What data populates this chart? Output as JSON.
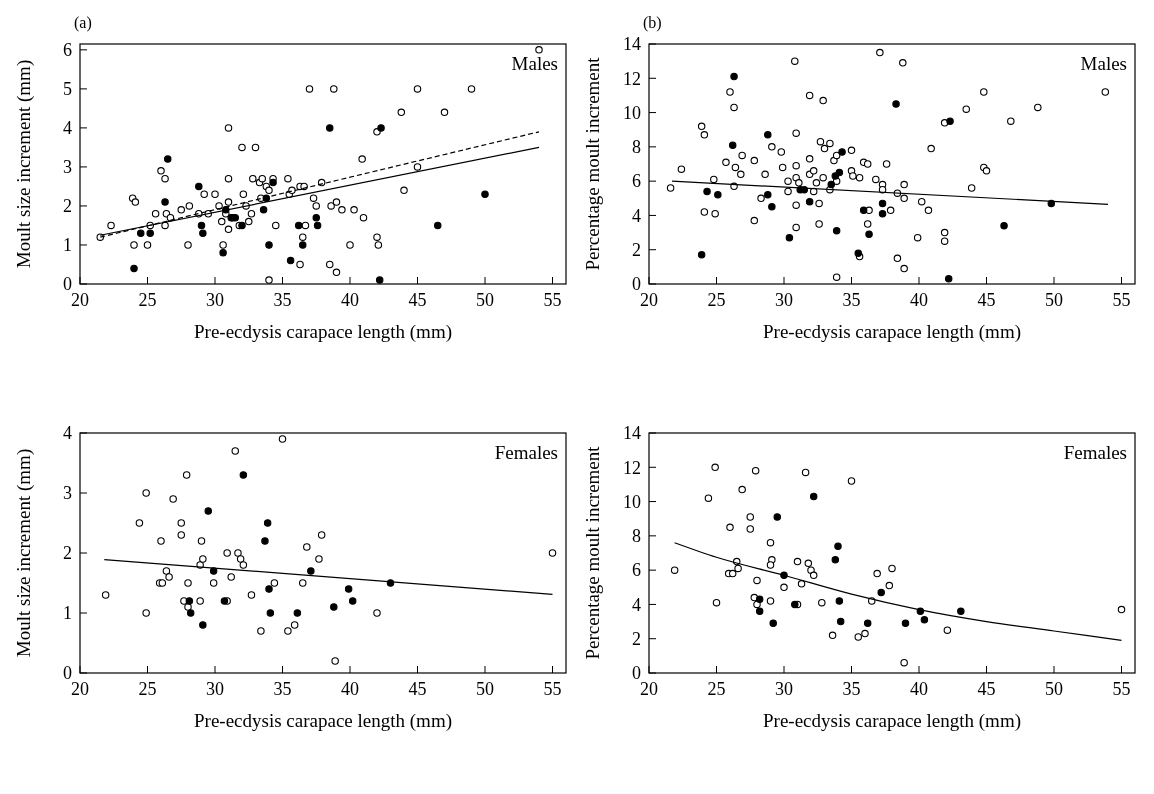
{
  "chart_data": [
    {
      "type": "scatter",
      "title": "Males",
      "annotations": [
        "(a)"
      ],
      "xlabel": "Pre-ecdysis carapace length (mm)",
      "ylabel": "Moult size increment (mm)",
      "xlim": [
        20,
        56
      ],
      "ylim": [
        0,
        6.15
      ],
      "xticks": [
        20,
        25,
        30,
        35,
        40,
        45,
        50,
        55
      ],
      "yticks": [
        0,
        1,
        2,
        3,
        4,
        5,
        6
      ],
      "series": [
        {
          "marker": "circle",
          "color": "#ffffff",
          "x": [
            21.5,
            22.3,
            23.9,
            24.1,
            24,
            25,
            25.2,
            25.6,
            26,
            26.3,
            26.3,
            26.4,
            26.7,
            27.5,
            28,
            28.1,
            28.8,
            29.2,
            29.5,
            30,
            30.3,
            30.5,
            30.6,
            30.8,
            31,
            31,
            31,
            31,
            31.3,
            31.8,
            32,
            32.1,
            32.3,
            32.5,
            32.7,
            32.8,
            33,
            33.3,
            33.4,
            33.5,
            33.8,
            34,
            34,
            34.3,
            34.5,
            35.4,
            35.5,
            35.7,
            36.3,
            36.5,
            36.6,
            36.7,
            37,
            37.3,
            37.5,
            37.9,
            38.8,
            38.5,
            38.6,
            39,
            39.4,
            40,
            40.3,
            40.9,
            41,
            42,
            42,
            42.1,
            43.8,
            44,
            45,
            45,
            47,
            49,
            54,
            39,
            36.3
          ],
          "values": [
            1.2,
            1.5,
            2.2,
            2.1,
            1,
            1,
            1.5,
            1.8,
            2.9,
            2.7,
            1.5,
            1.8,
            1.7,
            1.9,
            1,
            2,
            1.8,
            2.3,
            1.8,
            2.3,
            2,
            1.6,
            1,
            1.8,
            4,
            2.7,
            2.1,
            1.4,
            1.7,
            1.5,
            3.5,
            2.3,
            2,
            1.6,
            1.8,
            2.7,
            3.5,
            2.6,
            2.2,
            2.7,
            2.5,
            2.4,
            0.1,
            2.7,
            1.5,
            2.7,
            2.3,
            2.4,
            2.5,
            1.2,
            2.5,
            1.5,
            5,
            2.2,
            2,
            2.6,
            5,
            0.5,
            2,
            2.1,
            1.9,
            1,
            1.9,
            3.2,
            1.7,
            3.9,
            1.2,
            1,
            4.4,
            2.4,
            5,
            3,
            4.4,
            5,
            6,
            0.3,
            0.5
          ]
        },
        {
          "marker": "circle",
          "color": "#000000",
          "x": [
            24,
            24.5,
            25.2,
            26.3,
            26.5,
            28.8,
            29,
            29.1,
            30.6,
            30.8,
            31.2,
            31.5,
            32,
            33.6,
            33.8,
            34,
            34.3,
            35.6,
            36.2,
            36.5,
            37.5,
            37.6,
            38.5,
            42.3,
            42.2,
            46.5,
            50
          ],
          "values": [
            0.4,
            1.3,
            1.3,
            2.1,
            3.2,
            2.5,
            1.5,
            1.3,
            0.8,
            1.9,
            1.7,
            1.7,
            1.5,
            1.9,
            2.2,
            1,
            2.6,
            0.6,
            1.5,
            1,
            1.7,
            1.5,
            4,
            4,
            0.1,
            1.5,
            2.3
          ]
        },
        {
          "type": "line",
          "line_style": "solid",
          "color": "#000000",
          "x": [
            21.5,
            54
          ],
          "values": [
            1.25,
            3.5
          ]
        },
        {
          "type": "line",
          "line_style": "dashed",
          "color": "#000000",
          "x": [
            21.5,
            54
          ],
          "values": [
            1.2,
            3.9
          ]
        }
      ]
    },
    {
      "type": "scatter",
      "title": "Males",
      "annotations": [
        "(b)"
      ],
      "xlabel": "Pre-ecdysis carapace length (mm)",
      "ylabel": "Percentage moult increment",
      "xlim": [
        20,
        56
      ],
      "ylim": [
        0,
        14
      ],
      "xticks": [
        20,
        25,
        30,
        35,
        40,
        45,
        50,
        55
      ],
      "yticks": [
        0,
        2,
        4,
        6,
        8,
        10,
        12,
        14
      ],
      "series": [
        {
          "marker": "circle",
          "color": "#ffffff",
          "x": [
            21.6,
            22.4,
            23.9,
            24.1,
            24.1,
            24.8,
            24.9,
            25.7,
            26,
            26.3,
            26.3,
            26.4,
            26.8,
            26.9,
            27.8,
            27.8,
            28.3,
            28.6,
            29.1,
            29.8,
            29.9,
            30.3,
            30.3,
            30.8,
            30.9,
            30.9,
            30.9,
            30.9,
            30.9,
            31.1,
            31.9,
            31.9,
            31.9,
            32.2,
            32.2,
            32.4,
            32.6,
            32.6,
            32.7,
            32.9,
            32.9,
            33,
            33.4,
            33.4,
            33.7,
            33.9,
            33.9,
            35,
            35,
            35.1,
            35.6,
            35.6,
            35.9,
            36.2,
            36.2,
            36.3,
            36.8,
            37.1,
            37.3,
            37.3,
            37.6,
            37.9,
            38.4,
            38.4,
            38.8,
            38.9,
            38.9,
            39.9,
            40.2,
            40.7,
            40.9,
            41.9,
            41.9,
            41.9,
            43.5,
            43.9,
            44.8,
            44.8,
            45,
            46.8,
            48.8,
            53.8,
            33.9,
            38.9
          ],
          "values": [
            5.6,
            6.7,
            9.2,
            8.7,
            4.2,
            6.1,
            4.1,
            7.1,
            11.2,
            10.3,
            5.7,
            6.8,
            6.4,
            7.5,
            7.2,
            3.7,
            5,
            6.4,
            8,
            7.7,
            6.8,
            6,
            5.4,
            13,
            8.8,
            6.9,
            6.2,
            4.6,
            3.3,
            5.9,
            11,
            7.3,
            6.4,
            6.6,
            5.4,
            5.9,
            4.7,
            3.5,
            8.3,
            10.7,
            6.2,
            7.9,
            5.5,
            8.2,
            7.2,
            7.5,
            6,
            7.8,
            6.6,
            6.3,
            6.2,
            1.6,
            7.1,
            7,
            3.5,
            4.3,
            6.1,
            13.5,
            5.8,
            5.5,
            7,
            4.3,
            5.3,
            1.5,
            12.9,
            5.8,
            5,
            2.7,
            4.8,
            4.3,
            7.9,
            9.4,
            3,
            2.5,
            10.2,
            5.6,
            11.2,
            6.8,
            6.6,
            9.5,
            10.3,
            11.2,
            0.4,
            0.9
          ]
        },
        {
          "marker": "circle",
          "color": "#000000",
          "x": [
            23.9,
            24.3,
            25.1,
            26.2,
            26.3,
            28.8,
            28.8,
            29.1,
            30.4,
            31.2,
            31.5,
            31.9,
            33.5,
            33.8,
            33.9,
            34.1,
            34.3,
            35.5,
            35.9,
            36.3,
            37.3,
            37.3,
            38.3,
            42.3,
            46.3,
            49.8,
            42.2
          ],
          "values": [
            1.7,
            5.4,
            5.2,
            8.1,
            12.1,
            8.7,
            5.2,
            4.5,
            2.7,
            5.5,
            5.5,
            4.8,
            5.8,
            6.3,
            3.1,
            6.5,
            7.7,
            1.8,
            4.3,
            2.9,
            4.7,
            4.1,
            10.5,
            9.5,
            3.4,
            4.7,
            0.3
          ]
        },
        {
          "type": "line",
          "line_style": "solid",
          "color": "#000000",
          "x": [
            21.7,
            54
          ],
          "values": [
            6,
            4.65
          ]
        }
      ]
    },
    {
      "type": "scatter",
      "title": "Females",
      "xlabel": "Pre-ecdysis carapace length (mm)",
      "ylabel": "Moult size increment (mm)",
      "xlim": [
        20,
        56
      ],
      "ylim": [
        0,
        4
      ],
      "xticks": [
        20,
        25,
        30,
        35,
        40,
        45,
        50,
        55
      ],
      "yticks": [
        0,
        1,
        2,
        3,
        4
      ],
      "series": [
        {
          "marker": "circle",
          "color": "#ffffff",
          "x": [
            21.9,
            24.4,
            24.9,
            24.9,
            26,
            25.9,
            26.1,
            26.4,
            26.6,
            26.9,
            27.5,
            27.5,
            27.7,
            27.9,
            28,
            28,
            28.9,
            29,
            28.9,
            29.1,
            29.9,
            30.9,
            30.9,
            31.2,
            31.5,
            31.7,
            31.9,
            32.1,
            32.7,
            33.4,
            34.4,
            35,
            35.4,
            35.9,
            36.5,
            36.8,
            37.7,
            37.9,
            38.9,
            42,
            55
          ],
          "values": [
            1.3,
            2.5,
            3,
            1,
            2.2,
            1.5,
            1.5,
            1.7,
            1.6,
            2.9,
            2.5,
            2.3,
            1.2,
            3.3,
            1.5,
            1.1,
            1.2,
            2.2,
            1.8,
            1.9,
            1.5,
            2,
            1.2,
            1.6,
            3.7,
            2,
            1.9,
            1.8,
            1.3,
            0.7,
            1.5,
            3.9,
            0.7,
            0.8,
            1.5,
            2.1,
            1.9,
            2.3,
            0.2,
            1,
            2
          ]
        },
        {
          "marker": "circle",
          "color": "#000000",
          "x": [
            28.1,
            28.2,
            29.1,
            29.5,
            29.9,
            30.7,
            32.1,
            33.7,
            33.9,
            34,
            34.1,
            36.1,
            37.1,
            38.8,
            39.9,
            40.2,
            43
          ],
          "values": [
            1.2,
            1,
            0.8,
            2.7,
            1.7,
            1.2,
            3.3,
            2.2,
            2.5,
            1.4,
            1,
            1,
            1.7,
            1.1,
            1.4,
            1.2,
            1.5
          ]
        },
        {
          "type": "line",
          "line_style": "solid",
          "color": "#000000",
          "x": [
            21.8,
            55
          ],
          "values": [
            1.89,
            1.31
          ]
        }
      ]
    },
    {
      "type": "scatter",
      "title": "Females",
      "xlabel": "Pre-ecdysis carapace length (mm)",
      "ylabel": "Percentage moult increment",
      "xlim": [
        20,
        56
      ],
      "ylim": [
        0,
        14
      ],
      "xticks": [
        20,
        25,
        30,
        35,
        40,
        45,
        50,
        55
      ],
      "yticks": [
        0,
        2,
        4,
        6,
        8,
        10,
        12,
        14
      ],
      "series": [
        {
          "marker": "circle",
          "color": "#ffffff",
          "x": [
            21.9,
            24.4,
            24.9,
            25,
            26,
            25.9,
            26.2,
            26.5,
            26.6,
            26.9,
            27.5,
            27.5,
            27.8,
            27.9,
            28,
            28,
            29,
            29.1,
            29,
            29,
            30,
            31,
            31,
            31.3,
            31.6,
            31.8,
            32,
            32.2,
            32.8,
            33.6,
            35,
            35.5,
            36,
            36.5,
            36.9,
            37.8,
            38,
            42.1,
            55,
            38.9
          ],
          "values": [
            6,
            10.2,
            12,
            4.1,
            8.5,
            5.8,
            5.8,
            6.5,
            6.1,
            10.7,
            9.1,
            8.4,
            4.4,
            11.8,
            4,
            5.4,
            7.6,
            6.6,
            6.3,
            4.2,
            5,
            6.5,
            4,
            5.2,
            11.7,
            6.4,
            6,
            5.7,
            4.1,
            2.2,
            11.2,
            2.1,
            2.3,
            4.2,
            5.8,
            5.1,
            6.1,
            2.5,
            3.7,
            0.6
          ]
        },
        {
          "marker": "circle",
          "color": "#000000",
          "x": [
            28.2,
            28.2,
            29.2,
            29.5,
            30,
            30.8,
            32.2,
            33.8,
            34,
            34.1,
            34.2,
            36.2,
            37.2,
            39,
            40.1,
            40.4,
            43.1
          ],
          "values": [
            4.3,
            3.6,
            2.9,
            9.1,
            5.7,
            4,
            10.3,
            6.6,
            7.4,
            4.2,
            3,
            2.9,
            4.7,
            2.9,
            3.6,
            3.1,
            3.6
          ]
        },
        {
          "type": "line",
          "line_style": "solid",
          "color": "#000000",
          "x": [
            21.9,
            25,
            30,
            35,
            40,
            45,
            50,
            55
          ],
          "values": [
            7.6,
            6.75,
            5.7,
            4.6,
            3.7,
            3,
            2.45,
            1.9
          ]
        }
      ]
    }
  ]
}
